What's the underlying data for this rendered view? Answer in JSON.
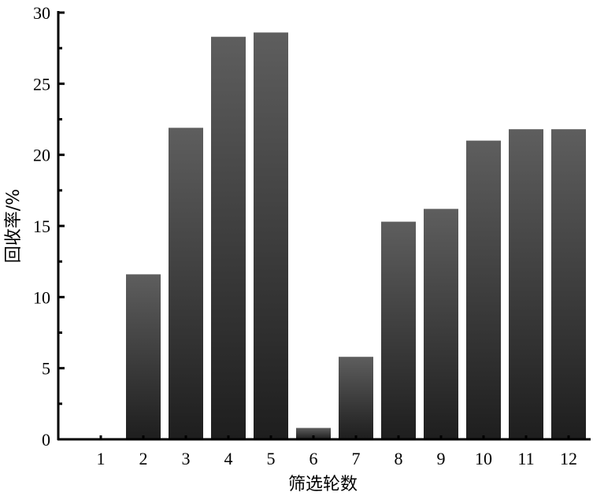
{
  "chart_data": {
    "type": "bar",
    "xlabel": "筛选轮数",
    "ylabel": "回收率/%",
    "categories": [
      "1",
      "2",
      "3",
      "4",
      "5",
      "6",
      "7",
      "8",
      "9",
      "10",
      "11",
      "12"
    ],
    "values": [
      0,
      11.6,
      21.9,
      28.3,
      28.6,
      0.8,
      5.8,
      15.3,
      16.2,
      21.0,
      21.8,
      21.8
    ],
    "ylim": [
      0,
      30
    ],
    "yticks": [
      "0",
      "5",
      "10",
      "15",
      "20",
      "25",
      "30"
    ],
    "grid": false,
    "legend": "none",
    "colors": {
      "bar_top": "#5e5e5e",
      "bar_bottom": "#1e1e1e",
      "axis": "#000000"
    }
  }
}
